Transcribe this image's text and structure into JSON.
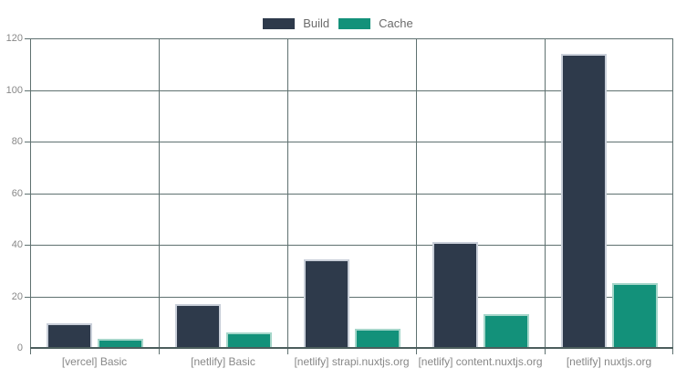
{
  "chart_data": {
    "type": "bar",
    "title": "",
    "categories": [
      "[vercel] Basic",
      "[netlify] Basic",
      "[netlify] strapi.nuxtjs.org",
      "[netlify] content.nuxtjs.org",
      "[netlify] nuxtjs.org"
    ],
    "series": [
      {
        "name": "Build",
        "color": "#2e3a4b",
        "border_color": "#c9cfd9",
        "values": [
          9.5,
          17,
          34.5,
          41,
          114
        ]
      },
      {
        "name": "Cache",
        "color": "#13917a",
        "border_color": "#a5d6ca",
        "values": [
          3.5,
          6,
          7.5,
          13,
          25
        ]
      }
    ],
    "xlabel": "",
    "ylabel": "",
    "ylim": [
      0,
      120
    ],
    "yticks": [
      0,
      20,
      40,
      60,
      80,
      100,
      120
    ],
    "grid": true,
    "legend_position": "top"
  },
  "colors": {
    "background": "#ffffff",
    "grid": "#5f7170",
    "axis": "#4c5e5d",
    "tick_label": "#888888",
    "category_label": "#888888",
    "legend_label": "#6b6b6b"
  }
}
